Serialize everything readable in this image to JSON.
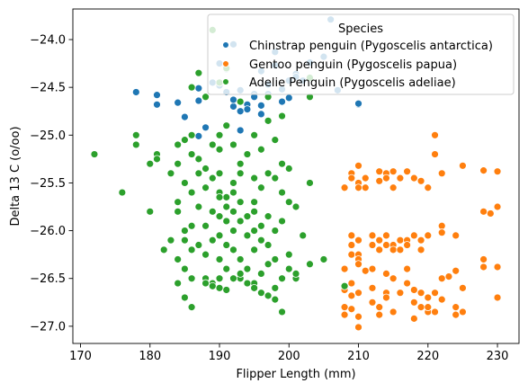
{
  "chart_data": {
    "type": "scatter",
    "xlabel": "Flipper Length (mm)",
    "ylabel": "Delta 13 C (o/oo)",
    "xlim": [
      168.9,
      233.1
    ],
    "ylim": [
      -27.18,
      -23.68
    ],
    "xticks": [
      170,
      180,
      190,
      200,
      210,
      220,
      230
    ],
    "yticks": [
      -27.0,
      -26.5,
      -26.0,
      -25.5,
      -25.0,
      -24.5,
      -24.0
    ],
    "xtick_labels": [
      "170",
      "180",
      "190",
      "200",
      "210",
      "220",
      "230"
    ],
    "ytick_labels": [
      "−27.0",
      "−26.5",
      "−26.0",
      "−25.5",
      "−25.0",
      "−24.5",
      "−24.0"
    ],
    "grid": false,
    "legend": {
      "title": "Species",
      "placement": "top-right"
    },
    "series": [
      {
        "name": "Chinstrap penguin (Pygoscelis antarctica)",
        "color": "#1f77b4",
        "points": [
          [
            178,
            -24.55
          ],
          [
            181,
            -24.58
          ],
          [
            181,
            -24.68
          ],
          [
            184,
            -24.66
          ],
          [
            185,
            -24.81
          ],
          [
            187,
            -24.51
          ],
          [
            187,
            -24.64
          ],
          [
            189,
            -24.45
          ],
          [
            190,
            -24.48
          ],
          [
            190,
            -24.25
          ],
          [
            191,
            -24.31
          ],
          [
            191,
            -24.55
          ],
          [
            192,
            -24.7
          ],
          [
            192,
            -24.63
          ],
          [
            193,
            -24.75
          ],
          [
            193,
            -24.53
          ],
          [
            194,
            -24.68
          ],
          [
            194,
            -24.73
          ],
          [
            195,
            -24.57
          ],
          [
            195,
            -24.6
          ],
          [
            196,
            -24.33
          ],
          [
            196,
            -24.69
          ],
          [
            196,
            -24.78
          ],
          [
            197,
            -24.47
          ],
          [
            197,
            -24.57
          ],
          [
            198,
            -24.13
          ],
          [
            198,
            -24.27
          ],
          [
            199,
            -24.52
          ],
          [
            199,
            -24.65
          ],
          [
            200,
            -24.43
          ],
          [
            200,
            -24.61
          ],
          [
            201,
            -24.36
          ],
          [
            201,
            -24.39
          ],
          [
            202,
            -24.43
          ],
          [
            203,
            -24.24
          ],
          [
            205,
            -24.18
          ],
          [
            206,
            -23.79
          ],
          [
            207,
            -24.53
          ],
          [
            210,
            -24.68
          ],
          [
            210,
            -24.67
          ],
          [
            195,
            -25.0
          ],
          [
            193,
            -24.95
          ],
          [
            192,
            -24.05
          ],
          [
            187,
            -25.01
          ],
          [
            188,
            -24.92
          ]
        ]
      },
      {
        "name": "Gentoo penguin (Pygoscelis papua)",
        "color": "#ff7f0e",
        "points": [
          [
            208,
            -25.55
          ],
          [
            209,
            -25.4
          ],
          [
            209,
            -26.05
          ],
          [
            209,
            -25.45
          ],
          [
            210,
            -25.32
          ],
          [
            210,
            -25.5
          ],
          [
            210,
            -25.55
          ],
          [
            211,
            -25.45
          ],
          [
            211,
            -25.55
          ],
          [
            213,
            -25.38
          ],
          [
            213,
            -25.48
          ],
          [
            214,
            -25.4
          ],
          [
            214,
            -25.45
          ],
          [
            215,
            -25.38
          ],
          [
            215,
            -25.55
          ],
          [
            216,
            -25.45
          ],
          [
            217,
            -25.38
          ],
          [
            219,
            -25.48
          ],
          [
            218,
            -25.45
          ],
          [
            220,
            -25.55
          ],
          [
            221,
            -25.2
          ],
          [
            221,
            -25.0
          ],
          [
            222,
            -25.4
          ],
          [
            225,
            -25.32
          ],
          [
            228,
            -25.37
          ],
          [
            230,
            -25.38
          ],
          [
            209,
            -26.15
          ],
          [
            209,
            -26.25
          ],
          [
            210,
            -26.1
          ],
          [
            210,
            -26.25
          ],
          [
            212,
            -26.05
          ],
          [
            212,
            -26.15
          ],
          [
            213,
            -26.2
          ],
          [
            213,
            -26.1
          ],
          [
            214,
            -26.15
          ],
          [
            214,
            -26.05
          ],
          [
            215,
            -26.15
          ],
          [
            215,
            -26.2
          ],
          [
            216,
            -26.2
          ],
          [
            216,
            -26.1
          ],
          [
            217,
            -26.1
          ],
          [
            217,
            -26.15
          ],
          [
            218,
            -26.05
          ],
          [
            219,
            -26.2
          ],
          [
            219,
            -26.1
          ],
          [
            220,
            -26.05
          ],
          [
            222,
            -25.95
          ],
          [
            222,
            -26.02
          ],
          [
            224,
            -26.05
          ],
          [
            228,
            -25.8
          ],
          [
            229,
            -25.82
          ],
          [
            230,
            -25.75
          ],
          [
            208,
            -26.4
          ],
          [
            208,
            -26.6
          ],
          [
            208,
            -26.62
          ],
          [
            209,
            -26.55
          ],
          [
            209,
            -26.68
          ],
          [
            210,
            -26.3
          ],
          [
            210,
            -26.35
          ],
          [
            210,
            -26.65
          ],
          [
            211,
            -26.42
          ],
          [
            212,
            -26.4
          ],
          [
            212,
            -26.6
          ],
          [
            213,
            -26.8
          ],
          [
            214,
            -26.65
          ],
          [
            214,
            -26.45
          ],
          [
            215,
            -26.5
          ],
          [
            215,
            -26.85
          ],
          [
            216,
            -26.65
          ],
          [
            217,
            -26.55
          ],
          [
            217,
            -26.4
          ],
          [
            218,
            -26.62
          ],
          [
            218,
            -26.75
          ],
          [
            219,
            -26.65
          ],
          [
            219,
            -26.8
          ],
          [
            220,
            -26.7
          ],
          [
            220,
            -26.85
          ],
          [
            221,
            -26.65
          ],
          [
            222,
            -26.5
          ],
          [
            222,
            -26.72
          ],
          [
            223,
            -26.48
          ],
          [
            224,
            -26.42
          ],
          [
            224,
            -26.8
          ],
          [
            225,
            -26.6
          ],
          [
            225,
            -26.85
          ],
          [
            228,
            -26.3
          ],
          [
            228,
            -26.38
          ],
          [
            230,
            -26.38
          ],
          [
            230,
            -26.7
          ],
          [
            208,
            -26.8
          ],
          [
            208,
            -26.88
          ],
          [
            209,
            -26.82
          ],
          [
            210,
            -26.9
          ],
          [
            210,
            -27.01
          ],
          [
            212,
            -26.75
          ],
          [
            213,
            -26.88
          ],
          [
            214,
            -26.7
          ],
          [
            216,
            -26.65
          ],
          [
            218,
            -26.92
          ],
          [
            220,
            -26.8
          ],
          [
            221,
            -26.85
          ],
          [
            224,
            -26.88
          ]
        ]
      },
      {
        "name": "Adelie Penguin (Pygoscelis adeliae)",
        "color": "#2ca02c",
        "points": [
          [
            172,
            -25.2
          ],
          [
            176,
            -25.6
          ],
          [
            178,
            -25.0
          ],
          [
            178,
            -25.1
          ],
          [
            180,
            -25.3
          ],
          [
            181,
            -25.2
          ],
          [
            181,
            -25.25
          ],
          [
            184,
            -25.3
          ],
          [
            184,
            -25.1
          ],
          [
            185,
            -25.05
          ],
          [
            186,
            -25.2
          ],
          [
            186,
            -25.0
          ],
          [
            187,
            -25.25
          ],
          [
            188,
            -25.35
          ],
          [
            189,
            -25.1
          ],
          [
            190,
            -25.0
          ],
          [
            190,
            -25.15
          ],
          [
            191,
            -24.9
          ],
          [
            192,
            -25.1
          ],
          [
            193,
            -25.3
          ],
          [
            194,
            -25.2
          ],
          [
            195,
            -25.0
          ],
          [
            195,
            -25.7
          ],
          [
            196,
            -25.15
          ],
          [
            197,
            -24.85
          ],
          [
            198,
            -25.05
          ],
          [
            199,
            -25.3
          ],
          [
            200,
            -25.35
          ],
          [
            203,
            -25.5
          ],
          [
            186,
            -24.5
          ],
          [
            187,
            -24.35
          ],
          [
            188,
            -24.6
          ],
          [
            189,
            -23.9
          ],
          [
            190,
            -24.45
          ],
          [
            191,
            -24.3
          ],
          [
            193,
            -24.65
          ],
          [
            197,
            -24.6
          ],
          [
            199,
            -24.8
          ],
          [
            203,
            -24.6
          ],
          [
            203,
            -24.4
          ],
          [
            180,
            -25.8
          ],
          [
            182,
            -26.2
          ],
          [
            183,
            -26.1
          ],
          [
            184,
            -25.8
          ],
          [
            184,
            -26.3
          ],
          [
            185,
            -26.0
          ],
          [
            185,
            -26.1
          ],
          [
            185,
            -26.4
          ],
          [
            186,
            -25.95
          ],
          [
            186,
            -26.2
          ],
          [
            186,
            -26.5
          ],
          [
            187,
            -26.15
          ],
          [
            187,
            -25.75
          ],
          [
            188,
            -26.5
          ],
          [
            188,
            -26.25
          ],
          [
            188,
            -25.95
          ],
          [
            189,
            -25.8
          ],
          [
            189,
            -26.1
          ],
          [
            189,
            -26.55
          ],
          [
            190,
            -25.6
          ],
          [
            190,
            -25.85
          ],
          [
            190,
            -26.05
          ],
          [
            190,
            -26.3
          ],
          [
            190,
            -26.5
          ],
          [
            191,
            -25.65
          ],
          [
            191,
            -25.9
          ],
          [
            191,
            -26.15
          ],
          [
            191,
            -26.4
          ],
          [
            192,
            -25.8
          ],
          [
            192,
            -26.0
          ],
          [
            192,
            -26.2
          ],
          [
            193,
            -25.7
          ],
          [
            193,
            -25.9
          ],
          [
            193,
            -26.3
          ],
          [
            193,
            -26.5
          ],
          [
            194,
            -25.85
          ],
          [
            194,
            -26.05
          ],
          [
            194,
            -26.4
          ],
          [
            195,
            -25.8
          ],
          [
            195,
            -26.0
          ],
          [
            195,
            -26.2
          ],
          [
            195,
            -26.55
          ],
          [
            196,
            -25.95
          ],
          [
            196,
            -26.1
          ],
          [
            196,
            -26.45
          ],
          [
            197,
            -25.85
          ],
          [
            197,
            -26.15
          ],
          [
            197,
            -26.35
          ],
          [
            198,
            -26.0
          ],
          [
            198,
            -26.3
          ],
          [
            198,
            -26.6
          ],
          [
            199,
            -25.9
          ],
          [
            199,
            -26.5
          ],
          [
            200,
            -26.25
          ],
          [
            201,
            -25.75
          ],
          [
            201,
            -26.5
          ],
          [
            202,
            -26.05
          ],
          [
            203,
            -26.35
          ],
          [
            186,
            -26.8
          ],
          [
            184,
            -26.55
          ],
          [
            185,
            -26.7
          ],
          [
            190,
            -25.4
          ],
          [
            192,
            -25.5
          ],
          [
            193,
            -25.4
          ],
          [
            195,
            -25.45
          ],
          [
            196,
            -25.55
          ],
          [
            197,
            -25.4
          ],
          [
            198,
            -25.45
          ],
          [
            199,
            -25.6
          ],
          [
            200,
            -25.7
          ],
          [
            183,
            -25.4
          ],
          [
            184,
            -25.7
          ],
          [
            185,
            -25.5
          ],
          [
            186,
            -25.6
          ],
          [
            187,
            -25.4
          ],
          [
            188,
            -25.55
          ],
          [
            189,
            -25.45
          ],
          [
            190,
            -25.65
          ],
          [
            191,
            -25.75
          ],
          [
            192,
            -25.6
          ],
          [
            188,
            -26.55
          ],
          [
            189,
            -26.58
          ],
          [
            190,
            -26.6
          ],
          [
            191,
            -26.62
          ],
          [
            192,
            -26.5
          ],
          [
            193,
            -26.45
          ],
          [
            194,
            -26.55
          ],
          [
            195,
            -26.6
          ],
          [
            196,
            -26.65
          ],
          [
            197,
            -26.68
          ],
          [
            198,
            -26.72
          ],
          [
            199,
            -26.85
          ],
          [
            200,
            -26.4
          ],
          [
            201,
            -26.45
          ],
          [
            205,
            -26.3
          ],
          [
            208,
            -26.58
          ]
        ]
      }
    ]
  }
}
